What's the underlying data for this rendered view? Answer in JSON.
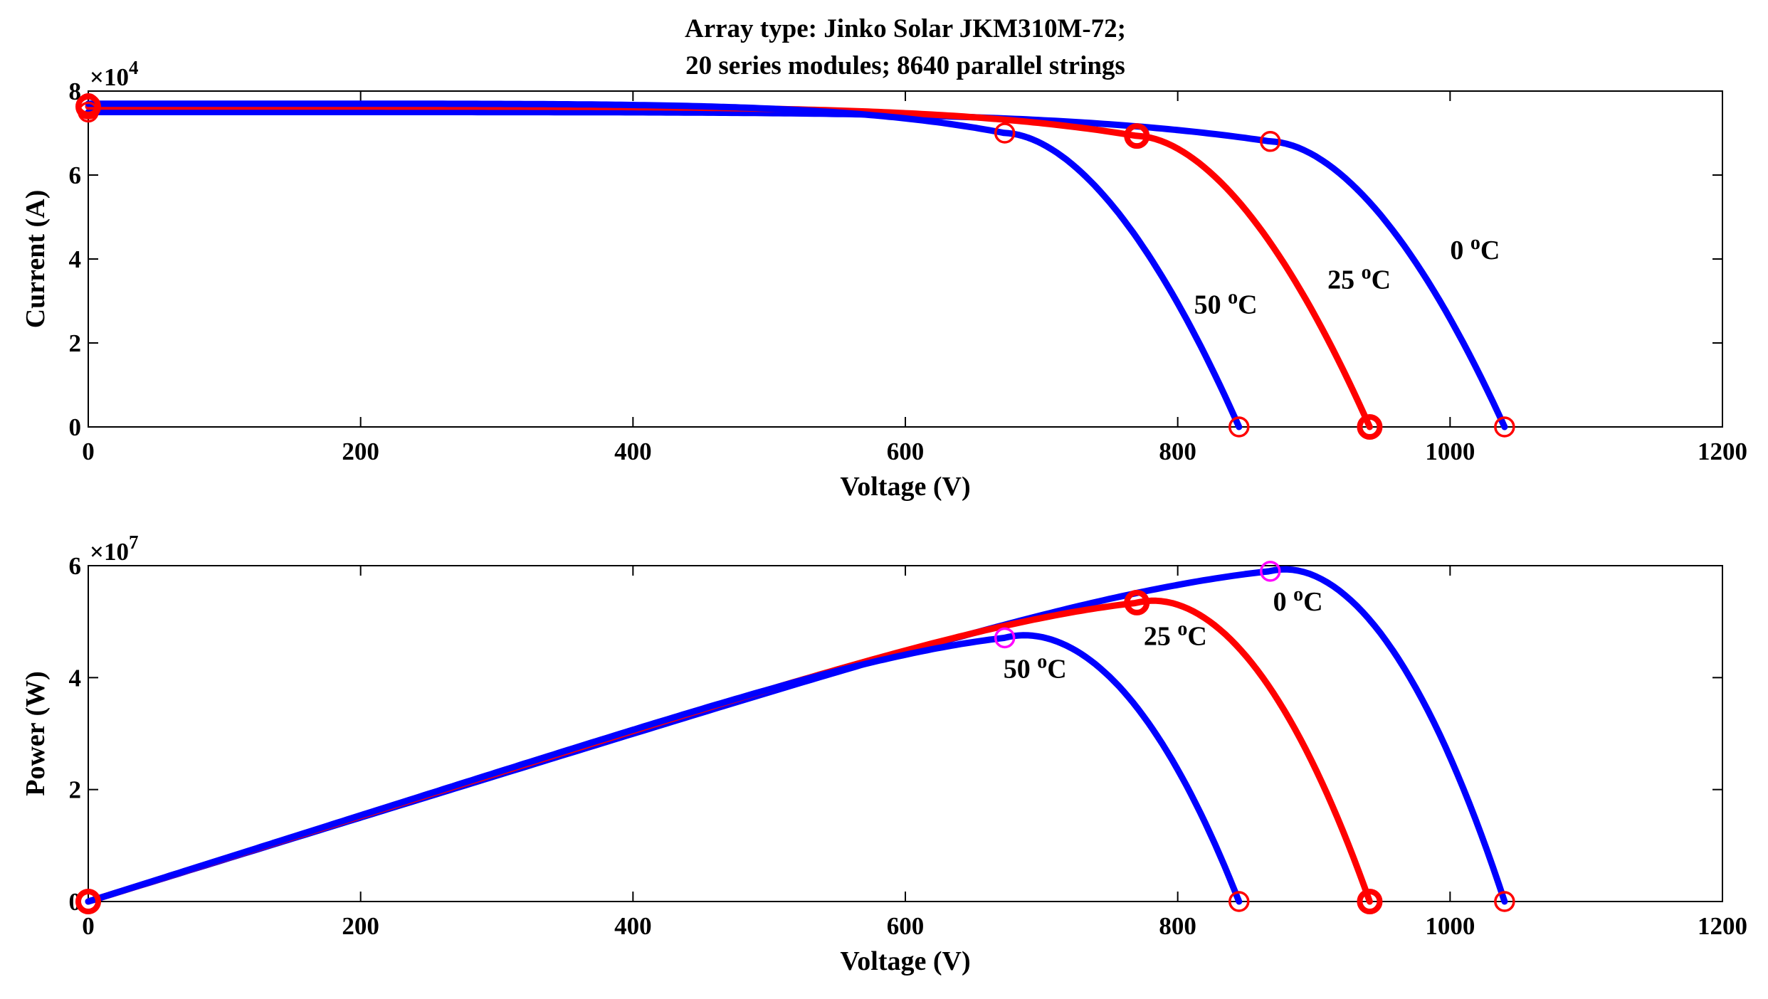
{
  "figure": {
    "title_lines": [
      "Array type: Jinko Solar JKM310M-72;",
      "20 series modules; 8640 parallel strings"
    ]
  },
  "colors": {
    "axes": "#000000",
    "curve_0C": "#0000ff",
    "curve_25C": "#ff0000",
    "curve_50C": "#0000ff",
    "marker_red": "#ff0000",
    "marker_magenta": "#ff00ff",
    "annotation_black": "#000000",
    "annotation_red": "#ff0000"
  },
  "chart_data": [
    {
      "type": "line",
      "name": "iv",
      "title": "",
      "xlabel": "Voltage (V)",
      "ylabel": "Current (A)",
      "xlim": [
        0,
        1200
      ],
      "ylim": [
        0,
        80000
      ],
      "xticks": [
        0,
        200,
        400,
        600,
        800,
        1000,
        1200
      ],
      "yticks": [
        0,
        20000,
        40000,
        60000,
        80000
      ],
      "ytick_labels": [
        "0",
        "2",
        "4",
        "6",
        "8"
      ],
      "y_exponent": {
        "base": "×10",
        "power": "4"
      },
      "series": [
        {
          "name": "0 °C",
          "color_key": "curve_0C",
          "curve": {
            "isc": 75000,
            "voc": 1040,
            "vmp": 868,
            "imp": 68000
          }
        },
        {
          "name": "25 °C",
          "color_key": "curve_25C",
          "curve": {
            "isc": 76300,
            "voc": 941,
            "vmp": 770,
            "imp": 69300
          }
        },
        {
          "name": "50 °C",
          "color_key": "curve_50C",
          "curve": {
            "isc": 77000,
            "voc": 845,
            "vmp": 673,
            "imp": 70000
          }
        }
      ],
      "markers": [
        {
          "x": 0,
          "y": 75000,
          "color_key": "marker_red",
          "style": "circle"
        },
        {
          "x": 868,
          "y": 68000,
          "color_key": "marker_red",
          "style": "circle"
        },
        {
          "x": 1040,
          "y": 0,
          "color_key": "marker_red",
          "style": "circle"
        },
        {
          "x": 0,
          "y": 76300,
          "color_key": "marker_red",
          "style": "bold-circle"
        },
        {
          "x": 770,
          "y": 69300,
          "color_key": "marker_red",
          "style": "bold-circle"
        },
        {
          "x": 941,
          "y": 0,
          "color_key": "marker_red",
          "style": "bold-circle"
        },
        {
          "x": 0,
          "y": 77000,
          "color_key": "marker_red",
          "style": "circle"
        },
        {
          "x": 673,
          "y": 70000,
          "color_key": "marker_red",
          "style": "circle"
        },
        {
          "x": 845,
          "y": 0,
          "color_key": "marker_red",
          "style": "circle"
        }
      ],
      "annotations": [
        {
          "base": "0 ",
          "sup": "o",
          "unit": "C",
          "x": 1000,
          "y": 40000,
          "color_key": "annotation_black"
        },
        {
          "base": "25 ",
          "sup": "o",
          "unit": "C",
          "x": 910,
          "y": 33000,
          "color_key": "annotation_red"
        },
        {
          "base": "50 ",
          "sup": "o",
          "unit": "C",
          "x": 812,
          "y": 27000,
          "color_key": "annotation_black"
        }
      ]
    },
    {
      "type": "line",
      "name": "pv",
      "title": "",
      "xlabel": "Voltage (V)",
      "ylabel": "Power (W)",
      "xlim": [
        0,
        1200
      ],
      "ylim": [
        0,
        60000000
      ],
      "xticks": [
        0,
        200,
        400,
        600,
        800,
        1000,
        1200
      ],
      "yticks": [
        0,
        20000000,
        40000000,
        60000000
      ],
      "ytick_labels": [
        "0",
        "2",
        "4",
        "6"
      ],
      "y_exponent": {
        "base": "×10",
        "power": "7"
      },
      "series": [
        {
          "name": "0 °C",
          "color_key": "curve_0C",
          "curve": {
            "isc": 75000,
            "voc": 1040,
            "vmp": 868,
            "imp": 68000
          }
        },
        {
          "name": "25 °C",
          "color_key": "curve_25C",
          "curve": {
            "isc": 76300,
            "voc": 941,
            "vmp": 770,
            "imp": 69300
          }
        },
        {
          "name": "50 °C",
          "color_key": "curve_50C",
          "curve": {
            "isc": 77000,
            "voc": 845,
            "vmp": 673,
            "imp": 70000
          }
        }
      ],
      "markers": [
        {
          "x": 0,
          "y": 0,
          "color_key": "marker_red",
          "style": "bold-circle"
        },
        {
          "x": 868,
          "y": 59000000,
          "color_key": "marker_magenta",
          "style": "circle"
        },
        {
          "x": 1040,
          "y": 0,
          "color_key": "marker_red",
          "style": "circle"
        },
        {
          "x": 770,
          "y": 53400000,
          "color_key": "marker_red",
          "style": "bold-circle"
        },
        {
          "x": 941,
          "y": 0,
          "color_key": "marker_red",
          "style": "bold-circle"
        },
        {
          "x": 673,
          "y": 47100000,
          "color_key": "marker_magenta",
          "style": "circle"
        },
        {
          "x": 845,
          "y": 0,
          "color_key": "marker_red",
          "style": "circle"
        }
      ],
      "annotations": [
        {
          "base": "0 ",
          "sup": "o",
          "unit": "C",
          "x": 870,
          "y": 52000000,
          "color_key": "annotation_black"
        },
        {
          "base": "25 ",
          "sup": "o",
          "unit": "C",
          "x": 775,
          "y": 45800000,
          "color_key": "annotation_red"
        },
        {
          "base": "50 ",
          "sup": "o",
          "unit": "C",
          "x": 672,
          "y": 40000000,
          "color_key": "annotation_black"
        }
      ]
    }
  ]
}
